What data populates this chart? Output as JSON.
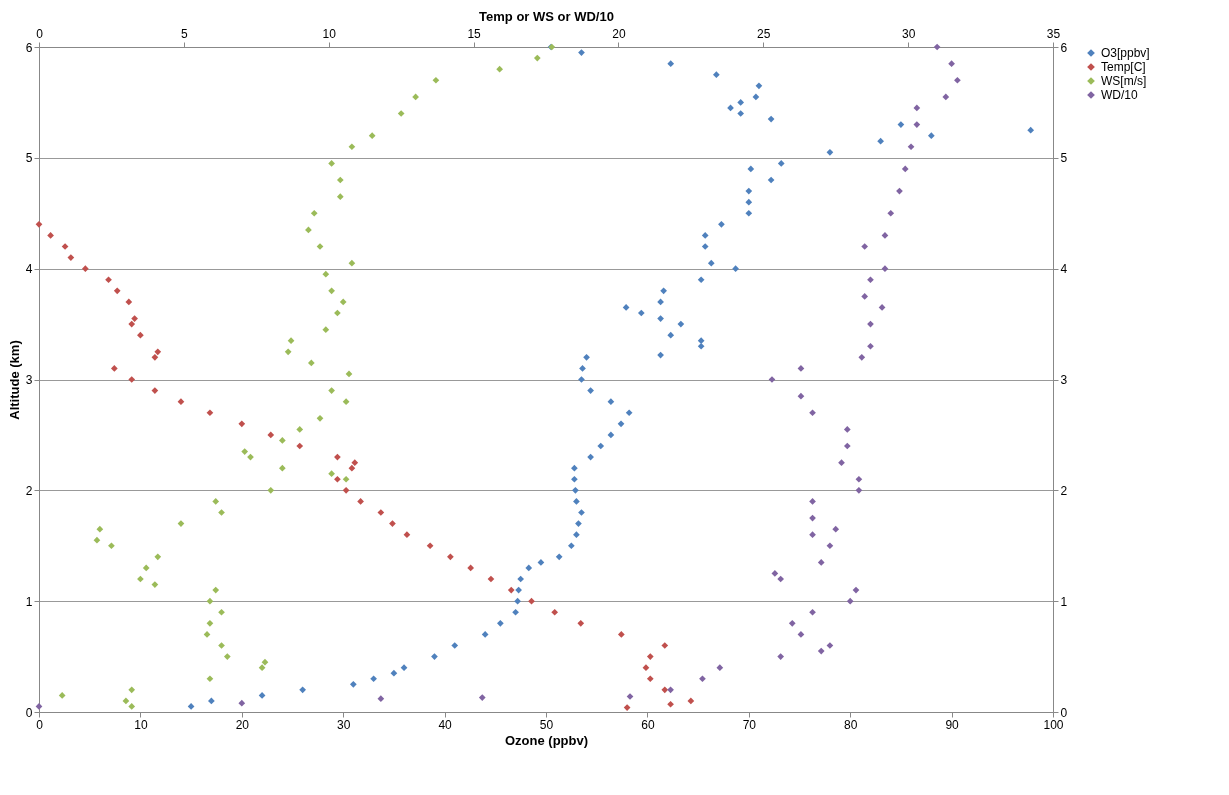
{
  "chart_data": {
    "type": "scatter",
    "xlabel": "Ozone (ppbv)",
    "x2label": "Temp or WS or WD/10",
    "ylabel": "Altitude (km)",
    "xlim": [
      0,
      100
    ],
    "xticks": [
      0,
      10,
      20,
      30,
      40,
      50,
      60,
      70,
      80,
      90,
      100
    ],
    "x2lim": [
      0,
      35
    ],
    "x2ticks": [
      0,
      5,
      10,
      15,
      20,
      25,
      30,
      35
    ],
    "ylim": [
      0,
      6
    ],
    "yticks": [
      0,
      1,
      2,
      3,
      4,
      5,
      6
    ],
    "y2lim": [
      0,
      6
    ],
    "y2ticks": [
      0,
      1,
      2,
      3,
      4,
      5,
      6
    ],
    "grid": "y",
    "legend": "right",
    "marker": "diamond",
    "series": [
      {
        "name": "O3[ppbv]",
        "color": "#4f81bd",
        "x": [
          15,
          17,
          22,
          26,
          31,
          33,
          35,
          36,
          39,
          41,
          44,
          45.5,
          47,
          47.2,
          47.3,
          47.5,
          48.3,
          49.5,
          51.3,
          52.5,
          53,
          53.2,
          53.5,
          53,
          52.9,
          52.8,
          52.8,
          54.4,
          55.4,
          56.4,
          57.4,
          58.2,
          56.4,
          54.4,
          53.5,
          53.6,
          54,
          61.3,
          65.3,
          65.3,
          62.3,
          63.3,
          61.3,
          59.4,
          57.9,
          61.3,
          61.6,
          65.3,
          68.7,
          66.3,
          65.7,
          65.7,
          67.3,
          70,
          70,
          70,
          72.2,
          70.2,
          73.2,
          78,
          83,
          88,
          97.8,
          85,
          72.2,
          69.2,
          68.2,
          69.2,
          70.7,
          71,
          66.8,
          62.3,
          53.5,
          50.5
        ],
        "values": [
          0.05,
          0.1,
          0.15,
          0.2,
          0.25,
          0.3,
          0.35,
          0.4,
          0.5,
          0.6,
          0.7,
          0.8,
          0.9,
          1.0,
          1.1,
          1.2,
          1.3,
          1.35,
          1.4,
          1.5,
          1.6,
          1.7,
          1.8,
          1.9,
          2.0,
          2.1,
          2.2,
          2.3,
          2.4,
          2.5,
          2.6,
          2.7,
          2.8,
          2.9,
          3.0,
          3.1,
          3.2,
          3.22,
          3.3,
          3.35,
          3.4,
          3.5,
          3.55,
          3.6,
          3.65,
          3.7,
          3.8,
          3.9,
          4.0,
          4.05,
          4.2,
          4.3,
          4.4,
          4.5,
          4.6,
          4.7,
          4.8,
          4.9,
          4.95,
          5.05,
          5.15,
          5.2,
          5.25,
          5.3,
          5.35,
          5.4,
          5.45,
          5.5,
          5.55,
          5.65,
          5.75,
          5.85,
          5.95,
          6.0
        ]
      },
      {
        "name": "Temp[C]",
        "color": "#c0504d",
        "axis": "x2",
        "x": [
          20.3,
          21.8,
          22.5,
          21.6,
          21.1,
          20.95,
          21.1,
          21.6,
          20.1,
          18.7,
          17.8,
          17,
          16.3,
          15.6,
          14.9,
          14.2,
          13.5,
          12.7,
          12.2,
          11.8,
          11.1,
          10.6,
          10.3,
          10.8,
          10.9,
          10.3,
          9.0,
          8.0,
          7.0,
          5.9,
          4.9,
          4.0,
          3.2,
          2.6,
          4.0,
          4.1,
          3.5,
          3.2,
          3.3,
          3.1,
          2.7,
          2.4,
          1.6,
          1.1,
          0.9,
          0.4,
          0
        ],
        "values": [
          0.04,
          0.07,
          0.1,
          0.2,
          0.3,
          0.4,
          0.5,
          0.6,
          0.7,
          0.8,
          0.9,
          1.0,
          1.1,
          1.2,
          1.3,
          1.4,
          1.5,
          1.6,
          1.7,
          1.8,
          1.9,
          2.0,
          2.1,
          2.2,
          2.25,
          2.3,
          2.4,
          2.5,
          2.6,
          2.7,
          2.8,
          2.9,
          3.0,
          3.1,
          3.2,
          3.25,
          3.4,
          3.5,
          3.55,
          3.7,
          3.8,
          3.9,
          4.0,
          4.1,
          4.2,
          4.3,
          4.4
        ]
      },
      {
        "name": "WS[m/s]",
        "color": "#9bbb59",
        "axis": "x2",
        "x": [
          3.2,
          3.0,
          0.8,
          3.2,
          5.9,
          7.7,
          7.8,
          6.5,
          6.3,
          5.8,
          5.9,
          6.3,
          5.9,
          6.1,
          4.0,
          3.5,
          3.7,
          4.1,
          2.5,
          2.0,
          2.1,
          4.9,
          6.3,
          6.1,
          8.0,
          10.6,
          10.1,
          8.4,
          7.3,
          7.1,
          8.4,
          9.0,
          9.7,
          10.6,
          10.1,
          10.7,
          9.4,
          8.6,
          8.7,
          9.9,
          10.3,
          10.5,
          10.1,
          9.9,
          10.8,
          9.7,
          9.3,
          9.5,
          10.4,
          10.4,
          10.1,
          10.8,
          11.5,
          12.5,
          13.0,
          13.7,
          15.9,
          17.2,
          17.7
        ],
        "values": [
          0.05,
          0.1,
          0.15,
          0.2,
          0.3,
          0.4,
          0.45,
          0.5,
          0.6,
          0.7,
          0.8,
          0.9,
          1.0,
          1.1,
          1.15,
          1.2,
          1.3,
          1.4,
          1.5,
          1.55,
          1.65,
          1.7,
          1.8,
          1.9,
          2.0,
          2.1,
          2.15,
          2.2,
          2.3,
          2.35,
          2.45,
          2.55,
          2.65,
          2.8,
          2.9,
          3.05,
          3.15,
          3.25,
          3.35,
          3.45,
          3.6,
          3.7,
          3.8,
          3.95,
          4.05,
          4.2,
          4.35,
          4.5,
          4.65,
          4.8,
          4.95,
          5.1,
          5.2,
          5.4,
          5.55,
          5.7,
          5.8,
          5.9,
          6.0
        ]
      },
      {
        "name": "WD/10",
        "color": "#8064a2",
        "axis": "x2",
        "x": [
          0,
          7.0,
          11.8,
          15.3,
          20.4,
          21.8,
          22.9,
          23.5,
          25.6,
          27.0,
          27.3,
          26.3,
          26.0,
          26.7,
          28.0,
          28.2,
          25.6,
          25.4,
          27.0,
          27.3,
          26.7,
          27.5,
          26.7,
          26.7,
          28.3,
          28.3,
          27.7,
          27.9,
          27.9,
          26.7,
          26.3,
          25.3,
          26.3,
          28.4,
          28.7,
          28.7,
          29.1,
          28.5,
          28.7,
          29.2,
          28.5,
          29.2,
          29.4,
          29.7,
          29.9,
          30.1,
          30.3,
          30.3,
          31.3,
          31.7,
          31.5,
          31.0
        ],
        "values": [
          0.05,
          0.08,
          0.12,
          0.13,
          0.14,
          0.2,
          0.3,
          0.4,
          0.5,
          0.55,
          0.6,
          0.7,
          0.8,
          0.9,
          1.0,
          1.1,
          1.2,
          1.25,
          1.35,
          1.5,
          1.6,
          1.65,
          1.75,
          1.9,
          2.0,
          2.1,
          2.25,
          2.4,
          2.55,
          2.7,
          2.85,
          3.0,
          3.1,
          3.2,
          3.3,
          3.5,
          3.65,
          3.75,
          3.9,
          4.0,
          4.2,
          4.3,
          4.5,
          4.7,
          4.9,
          5.1,
          5.3,
          5.45,
          5.55,
          5.7,
          5.85,
          6.0
        ]
      }
    ]
  }
}
